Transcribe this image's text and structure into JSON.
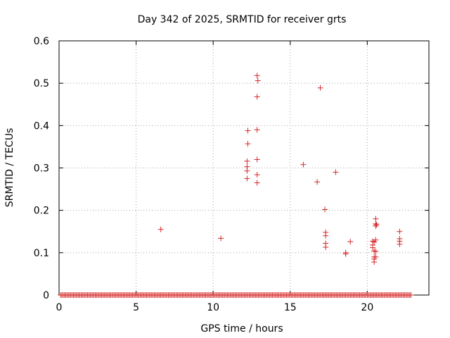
{
  "chart_data": {
    "type": "scatter",
    "title": "Day 342 of 2025, SRMTID for receiver grts",
    "xlabel": "GPS time / hours",
    "ylabel": "SRMTID / TECUs",
    "xlim": [
      0,
      24
    ],
    "ylim": [
      0,
      0.6
    ],
    "grid": true,
    "x_ticks": [
      0,
      5,
      10,
      15,
      20
    ],
    "x_tick_labels": [
      "0",
      "5",
      "10",
      "15",
      "20"
    ],
    "y_ticks": [
      0,
      0.1,
      0.2,
      0.3,
      0.4,
      0.5,
      0.6
    ],
    "y_tick_labels": [
      "0",
      "0.1",
      "0.2",
      "0.3",
      "0.4",
      "0.5",
      "0.6"
    ],
    "marker": "+",
    "color": "#d62728",
    "zero_band": {
      "x_from": 0.1,
      "x_to": 22.9,
      "step": 0.0833,
      "y": 0
    },
    "series": [
      {
        "name": "SRMTID",
        "points": [
          [
            6.6,
            0.155
          ],
          [
            10.5,
            0.134
          ],
          [
            12.2,
            0.316
          ],
          [
            12.2,
            0.303
          ],
          [
            12.2,
            0.293
          ],
          [
            12.2,
            0.275
          ],
          [
            12.25,
            0.388
          ],
          [
            12.25,
            0.357
          ],
          [
            12.85,
            0.518
          ],
          [
            12.9,
            0.506
          ],
          [
            12.85,
            0.468
          ],
          [
            12.85,
            0.39
          ],
          [
            12.85,
            0.32
          ],
          [
            12.85,
            0.284
          ],
          [
            12.85,
            0.265
          ],
          [
            15.85,
            0.308
          ],
          [
            16.75,
            0.267
          ],
          [
            16.95,
            0.489
          ],
          [
            17.25,
            0.202
          ],
          [
            17.3,
            0.148
          ],
          [
            17.3,
            0.14
          ],
          [
            17.3,
            0.122
          ],
          [
            17.3,
            0.113
          ],
          [
            17.95,
            0.29
          ],
          [
            18.6,
            0.1
          ],
          [
            18.6,
            0.097
          ],
          [
            18.9,
            0.126
          ],
          [
            20.35,
            0.127
          ],
          [
            20.35,
            0.118
          ],
          [
            20.35,
            0.112
          ],
          [
            20.45,
            0.125
          ],
          [
            20.45,
            0.104
          ],
          [
            20.45,
            0.09
          ],
          [
            20.45,
            0.085
          ],
          [
            20.45,
            0.078
          ],
          [
            20.55,
            0.18
          ],
          [
            20.55,
            0.168
          ],
          [
            20.55,
            0.163
          ],
          [
            20.55,
            0.13
          ],
          [
            20.55,
            0.103
          ],
          [
            20.55,
            0.09
          ],
          [
            20.6,
            0.166
          ],
          [
            22.1,
            0.15
          ],
          [
            22.1,
            0.133
          ],
          [
            22.1,
            0.127
          ],
          [
            22.1,
            0.12
          ]
        ]
      }
    ]
  }
}
